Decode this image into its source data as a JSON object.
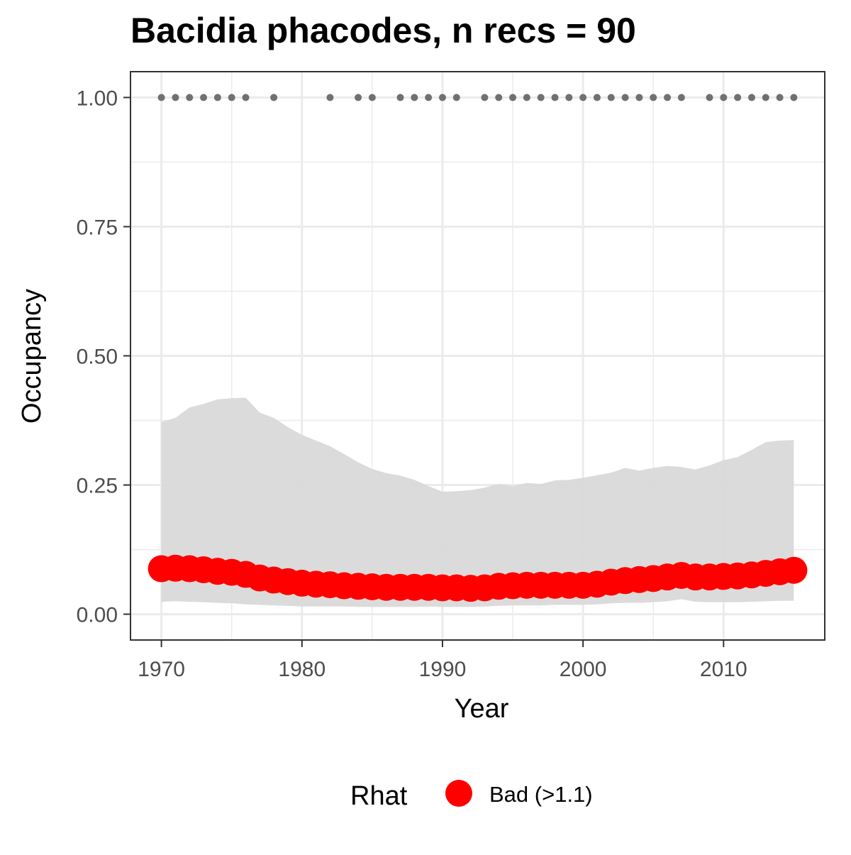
{
  "chart_data": {
    "type": "line",
    "title": "Bacidia phacodes, n recs = 90",
    "xlabel": "Year",
    "ylabel": "Occupancy",
    "xlim": [
      1967.8,
      2017.2
    ],
    "ylim": [
      -0.05,
      1.05
    ],
    "x_ticks": [
      1970,
      1980,
      1990,
      2000,
      2010
    ],
    "x_tick_labels": [
      "1970",
      "1980",
      "1990",
      "2000",
      "2010"
    ],
    "y_ticks": [
      0,
      0.25,
      0.5,
      0.75,
      1.0
    ],
    "y_tick_labels": [
      "0.00",
      "0.25",
      "0.50",
      "0.75",
      "1.00"
    ],
    "grid": true,
    "legend": {
      "title": "Rhat",
      "position": "bottom",
      "entries": [
        {
          "label": "Bad (>1.1)",
          "color": "#ff0000"
        }
      ]
    },
    "colors": {
      "point": "#ff0000",
      "ribbon": "#d9d9d9",
      "records": "#707070",
      "grid": "#ebebeb"
    },
    "years": [
      1970,
      1971,
      1972,
      1973,
      1974,
      1975,
      1976,
      1977,
      1978,
      1979,
      1980,
      1981,
      1982,
      1983,
      1984,
      1985,
      1986,
      1987,
      1988,
      1989,
      1990,
      1991,
      1992,
      1993,
      1994,
      1995,
      1996,
      1997,
      1998,
      1999,
      2000,
      2001,
      2002,
      2003,
      2004,
      2005,
      2006,
      2007,
      2008,
      2009,
      2010,
      2011,
      2012,
      2013,
      2014,
      2015
    ],
    "series": [
      {
        "name": "Bad (>1.1)",
        "values": [
          0.088,
          0.089,
          0.088,
          0.086,
          0.083,
          0.081,
          0.077,
          0.07,
          0.066,
          0.063,
          0.06,
          0.058,
          0.057,
          0.055,
          0.054,
          0.053,
          0.052,
          0.052,
          0.052,
          0.052,
          0.051,
          0.051,
          0.05,
          0.051,
          0.054,
          0.055,
          0.056,
          0.056,
          0.056,
          0.056,
          0.056,
          0.058,
          0.062,
          0.065,
          0.067,
          0.069,
          0.072,
          0.075,
          0.072,
          0.072,
          0.073,
          0.074,
          0.076,
          0.079,
          0.082,
          0.085
        ]
      }
    ],
    "ribbon_upper": [
      0.372,
      0.38,
      0.4,
      0.407,
      0.416,
      0.418,
      0.419,
      0.39,
      0.38,
      0.362,
      0.347,
      0.336,
      0.325,
      0.31,
      0.294,
      0.281,
      0.273,
      0.268,
      0.26,
      0.248,
      0.237,
      0.238,
      0.24,
      0.245,
      0.252,
      0.248,
      0.254,
      0.252,
      0.259,
      0.26,
      0.264,
      0.269,
      0.274,
      0.283,
      0.278,
      0.283,
      0.287,
      0.285,
      0.28,
      0.288,
      0.298,
      0.304,
      0.318,
      0.333,
      0.336,
      0.337
    ],
    "ribbon_lower": [
      0.024,
      0.025,
      0.024,
      0.023,
      0.022,
      0.021,
      0.019,
      0.018,
      0.017,
      0.016,
      0.015,
      0.015,
      0.015,
      0.015,
      0.014,
      0.014,
      0.014,
      0.014,
      0.014,
      0.015,
      0.014,
      0.014,
      0.014,
      0.015,
      0.016,
      0.017,
      0.017,
      0.017,
      0.018,
      0.018,
      0.018,
      0.019,
      0.021,
      0.022,
      0.022,
      0.023,
      0.025,
      0.029,
      0.024,
      0.023,
      0.023,
      0.023,
      0.024,
      0.025,
      0.026,
      0.026
    ],
    "record_years": [
      1970,
      1971,
      1972,
      1973,
      1974,
      1975,
      1976,
      1978,
      1982,
      1984,
      1985,
      1987,
      1988,
      1989,
      1990,
      1991,
      1993,
      1994,
      1995,
      1996,
      1997,
      1998,
      1999,
      2000,
      2001,
      2002,
      2003,
      2004,
      2005,
      2006,
      2007,
      2009,
      2010,
      2011,
      2012,
      2013,
      2014,
      2015
    ],
    "record_value": 1.0
  }
}
